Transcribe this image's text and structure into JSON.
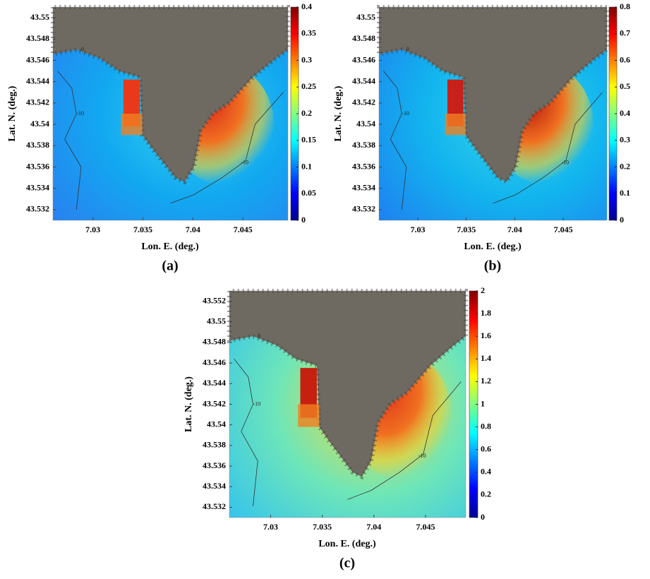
{
  "panels": [
    {
      "label": "(a)",
      "xlabel": "Lon. E. (deg.)",
      "ylabel": "Lat. N. (deg.)",
      "xlim": [
        7.026,
        7.0495
      ],
      "ylim": [
        43.531,
        43.551
      ],
      "xticks": [
        7.03,
        7.035,
        7.04,
        7.045
      ],
      "yticks": [
        43.532,
        43.534,
        43.536,
        43.538,
        43.54,
        43.542,
        43.544,
        43.546,
        43.548,
        43.55
      ],
      "colorbar": {
        "lim": [
          0,
          0.4
        ],
        "ticks": [
          0,
          0.05,
          0.1,
          0.15,
          0.2,
          0.25,
          0.3,
          0.35,
          0.4
        ]
      },
      "contour_levels": [
        -10,
        0
      ]
    },
    {
      "label": "(b)",
      "xlabel": "Lon. E. (deg.)",
      "ylabel": "Lat. N. (deg.)",
      "xlim": [
        7.026,
        7.0495
      ],
      "ylim": [
        43.531,
        43.551
      ],
      "xticks": [
        7.03,
        7.035,
        7.04,
        7.045
      ],
      "yticks": [
        43.532,
        43.534,
        43.536,
        43.538,
        43.54,
        43.542,
        43.544,
        43.546,
        43.548,
        43.55
      ],
      "colorbar": {
        "lim": [
          0,
          0.8
        ],
        "ticks": [
          0,
          0.1,
          0.2,
          0.3,
          0.4,
          0.5,
          0.6,
          0.7,
          0.8
        ]
      },
      "contour_levels": [
        -10,
        0
      ]
    },
    {
      "label": "(c)",
      "xlabel": "Lon. E. (deg.)",
      "ylabel": "Lat. N. (deg.)",
      "xlim": [
        7.026,
        7.0489
      ],
      "ylim": [
        43.531,
        43.553
      ],
      "xticks": [
        7.03,
        7.035,
        7.04,
        7.045
      ],
      "yticks": [
        43.532,
        43.534,
        43.536,
        43.538,
        43.54,
        43.542,
        43.544,
        43.546,
        43.548,
        43.55,
        43.552
      ],
      "colorbar": {
        "lim": [
          0,
          2
        ],
        "ticks": [
          0,
          0.2,
          0.4,
          0.6,
          0.8,
          1,
          1.2,
          1.4,
          1.6,
          1.8,
          2
        ]
      },
      "contour_levels": [
        -10,
        0
      ]
    }
  ]
}
